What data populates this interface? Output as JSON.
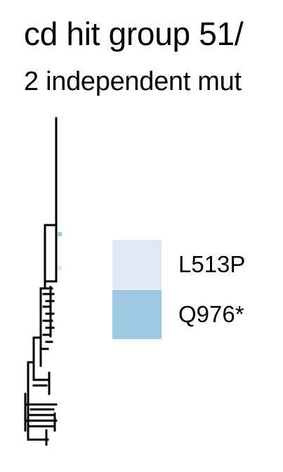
{
  "title": "cd hit group 51/",
  "subtitle": "2 independent mut",
  "legend": {
    "items": [
      {
        "label": "L513P",
        "color": "#dde8f4"
      },
      {
        "label": "Q976*",
        "color": "#9ecae1"
      }
    ]
  },
  "colors": {
    "branch": "#000000",
    "tip_mark_light": "#dde8f4",
    "tip_mark_dark": "#9ecae1"
  }
}
